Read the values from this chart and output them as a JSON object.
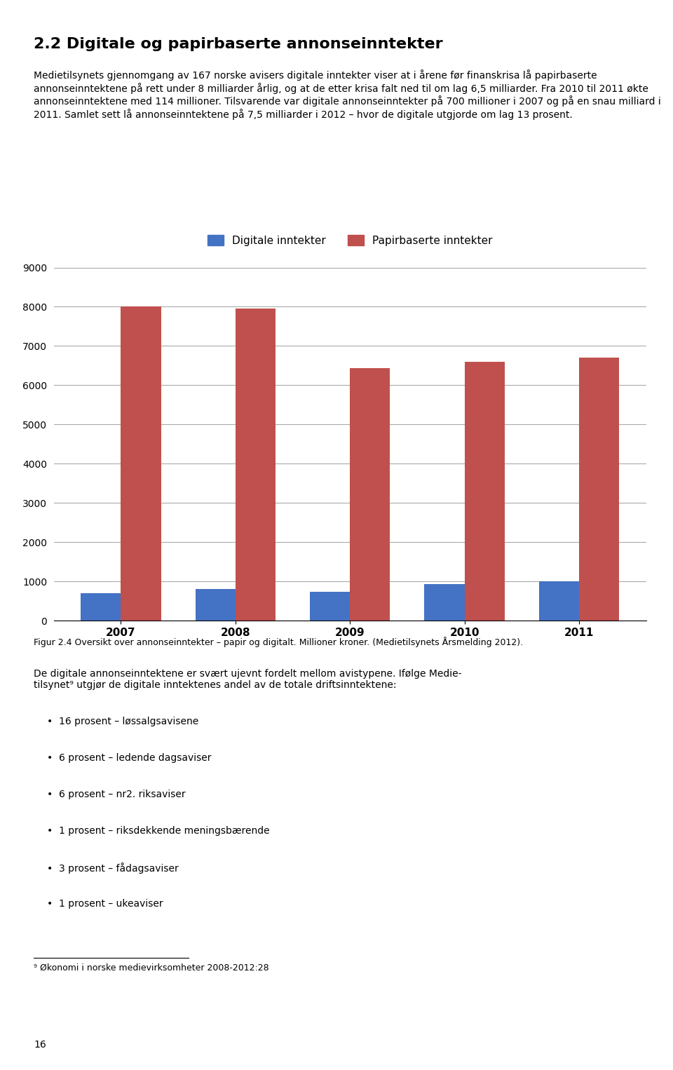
{
  "years": [
    "2007",
    "2008",
    "2009",
    "2010",
    "2011"
  ],
  "digital_values": [
    700,
    800,
    730,
    930,
    1000
  ],
  "paper_values": [
    8000,
    7950,
    6430,
    6600,
    6700
  ],
  "digital_color": "#4472C4",
  "paper_color": "#C0504D",
  "legend_digital": "Digitale inntekter",
  "legend_paper": "Papirbaserte inntekter",
  "figcaption": "Figur 2.4 Oversikt over annonseinntekter – papir og digitalt. Millioner kroner. (Medietilsynets Årsmelding 2012).",
  "ylim": [
    0,
    9000
  ],
  "yticks": [
    0,
    1000,
    2000,
    3000,
    4000,
    5000,
    6000,
    7000,
    8000,
    9000
  ],
  "bar_width": 0.35,
  "title_text": "2.2 Digitale og papirbaserte annonseinntekter",
  "body_text": "Medietilsynets gjennomgang av 167 norske avisers digitale inntekter viser at i årene før finanskrisa lå papirbaserte annonseinntektene på rett under 8 milliarder årlig, og at de etter krisa falt ned til om lag 6,5 milliarder. Fra 2010 til 2011 økte annonseinntektene med 114 millioner. Tilsvarende var digitale annonseinntekter på 700 millioner i 2007 og på en snau milliard i 2011. Samlet sett lå annonseinntektene på 7,5 milliarder i 2012 – hvor de digitale utgjorde om lag 13 prosent.",
  "footer_text": "De digitale annonseinntektene er svært ujevnt fordelt mellom avistypene. Ifølge Medie-\ntilsynet⁹ utgjør de digitale inntektenes andel av de totale driftsinntektene:",
  "bullets": [
    "16 prosent – løssalgsavisene",
    "6 prosent – ledende dagsaviser",
    "6 prosent – nr2. riksaviser",
    "1 prosent – riksdekkende meningsbærende",
    "3 prosent – fådagsaviser",
    "1 prosent – ukeaviser"
  ],
  "footnote": "⁹ Økonomi i norske medievirksomheter 2008-2012:28",
  "page_number": "16"
}
